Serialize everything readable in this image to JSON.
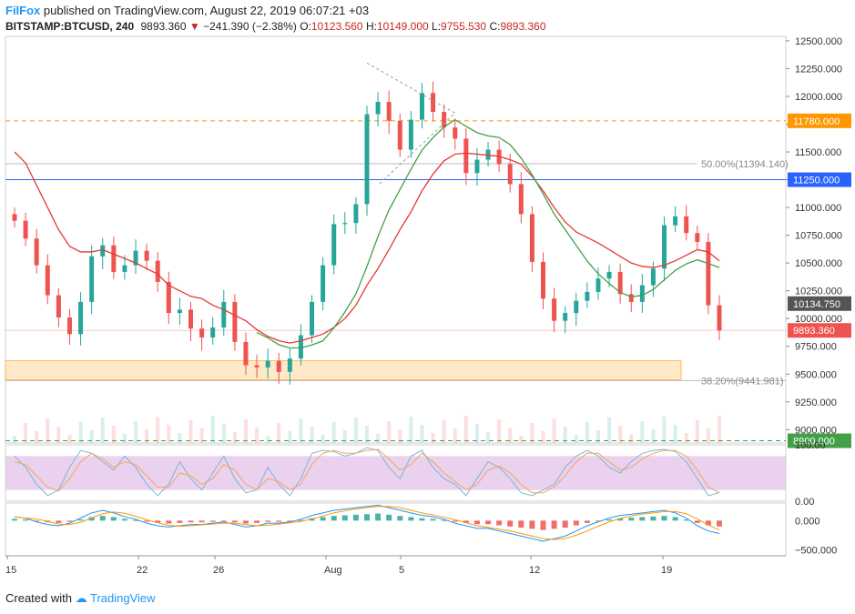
{
  "header": {
    "user": "FilFox",
    "published_text": "published on TradingView.com, August 22, 2019 06:07:21 +03",
    "symbol": "BITSTAMP:BTCUSD, 240",
    "last": "9893.360",
    "arrow": "▼",
    "change": "−241.390 (−2.38%)",
    "o_label": "O:",
    "o_value": "10123.560",
    "h_label": "H:",
    "h_value": "10149.000",
    "l_label": "L:",
    "l_value": "9755.530",
    "c_label": "C:",
    "c_value": "9893.360"
  },
  "footer": {
    "created": "Created with",
    "brand": "TradingView"
  },
  "colors": {
    "up": "#26a69a",
    "down": "#ef5350",
    "ma_red": "#e53935",
    "ma_green": "#43a047",
    "orange": "#ff9800",
    "blue": "#2962ff",
    "rsi_band": "#e1bee7",
    "zone": "#ffe0b2"
  },
  "chart_data": [
    {
      "type": "candlestick",
      "price_axis_labels": [
        "12500.000",
        "12250.000",
        "12000.000",
        "11750.000",
        "11500.000",
        "11250.000",
        "11000.000",
        "10750.000",
        "10500.000",
        "10250.000",
        "10000.000",
        "9750.000",
        "9500.000",
        "9250.000",
        "9000.000"
      ],
      "x_tick_labels": [
        "15",
        "22",
        "26",
        "Aug",
        "5",
        "12",
        "19"
      ],
      "ylim": [
        8880,
        12540
      ],
      "series": [
        {
          "name": "close_series",
          "values": [
            10880,
            10720,
            10480,
            10210,
            10010,
            9860,
            10150,
            10560,
            10660,
            10420,
            10480,
            10610,
            10520,
            10330,
            10050,
            10080,
            9910,
            9830,
            9920,
            10150,
            9790,
            9580,
            9560,
            9620,
            9520,
            9640,
            9850,
            10150,
            10480,
            10850,
            10860,
            11030,
            11840,
            11950,
            11780,
            11520,
            11790,
            12030,
            11860,
            11720,
            11620,
            11310,
            11430,
            11520,
            11390,
            11210,
            10940,
            10510,
            10180,
            9980,
            10050,
            10160,
            10240,
            10360,
            10420,
            10220,
            10150,
            10300,
            10450,
            10840,
            10920,
            10770,
            10690,
            10120,
            9893
          ]
        },
        {
          "name": "ma_red",
          "values": [
            11500,
            11400,
            11200,
            11000,
            10800,
            10650,
            10600,
            10600,
            10620,
            10580,
            10540,
            10500,
            10450,
            10400,
            10300,
            10250,
            10200,
            10180,
            10120,
            10080,
            10030,
            9980,
            9900,
            9840,
            9800,
            9780,
            9800,
            9830,
            9860,
            9920,
            10000,
            10120,
            10300,
            10450,
            10620,
            10800,
            10960,
            11150,
            11300,
            11420,
            11480,
            11490,
            11480,
            11470,
            11460,
            11430,
            11390,
            11280,
            11150,
            11000,
            10870,
            10780,
            10730,
            10680,
            10620,
            10560,
            10500,
            10470,
            10460,
            10480,
            10520,
            10570,
            10620,
            10600,
            10520
          ]
        }
      ],
      "horizontal_lines": [
        {
          "name": "resistance_11780",
          "price": 11780,
          "label": "11780.000"
        },
        {
          "name": "level_11250",
          "price": 11250,
          "label": "11250.000"
        },
        {
          "name": "support_8900",
          "price": 8900,
          "label": "8900.000"
        }
      ],
      "fib_levels": [
        {
          "label": "50.00%(11394.140)",
          "price": 11394.14
        },
        {
          "label": "38.20%(9441.981)",
          "price": 9441.981
        }
      ],
      "price_labels": [
        {
          "name": "prev_close_label",
          "price": 10134.75,
          "label": "10134.750"
        },
        {
          "name": "last_price_label",
          "price": 9893.36,
          "label": "9893.360"
        }
      ]
    },
    {
      "type": "line",
      "name": "rsi",
      "axis_labels": [
        "100.00",
        "0.00"
      ],
      "ylim": [
        0,
        100
      ],
      "band": [
        20,
        80
      ],
      "series": [
        {
          "name": "k",
          "values": [
            80,
            60,
            30,
            10,
            20,
            60,
            90,
            85,
            70,
            55,
            80,
            60,
            30,
            10,
            30,
            70,
            40,
            20,
            50,
            80,
            40,
            15,
            20,
            60,
            30,
            10,
            40,
            85,
            90,
            88,
            80,
            85,
            95,
            90,
            60,
            40,
            80,
            90,
            60,
            40,
            30,
            10,
            40,
            70,
            60,
            40,
            15,
            10,
            20,
            30,
            60,
            80,
            90,
            80,
            60,
            50,
            70,
            85,
            90,
            92,
            88,
            70,
            40,
            10,
            15
          ]
        },
        {
          "name": "d",
          "values": [
            70,
            65,
            45,
            25,
            18,
            40,
            70,
            85,
            75,
            60,
            70,
            65,
            45,
            25,
            25,
            50,
            45,
            30,
            40,
            65,
            55,
            30,
            20,
            40,
            35,
            20,
            30,
            65,
            85,
            90,
            85,
            85,
            90,
            92,
            75,
            55,
            65,
            85,
            70,
            50,
            35,
            20,
            30,
            55,
            62,
            50,
            30,
            15,
            15,
            25,
            45,
            70,
            85,
            85,
            70,
            55,
            60,
            75,
            85,
            90,
            90,
            80,
            55,
            25,
            15
          ]
        }
      ]
    },
    {
      "type": "bar",
      "name": "macd",
      "axis_labels": [
        "0.000",
        "−500.000"
      ],
      "ylim": [
        -600,
        300
      ],
      "histogram": [
        30,
        20,
        -10,
        -30,
        -40,
        -20,
        20,
        60,
        80,
        60,
        30,
        10,
        -20,
        -40,
        -50,
        -40,
        -30,
        -30,
        -20,
        -10,
        -30,
        -50,
        -40,
        -20,
        -20,
        -10,
        10,
        40,
        60,
        80,
        90,
        100,
        110,
        120,
        100,
        80,
        60,
        40,
        30,
        10,
        -20,
        -40,
        -60,
        -60,
        -80,
        -100,
        -120,
        -140,
        -160,
        -140,
        -120,
        -80,
        -40,
        -10,
        20,
        40,
        50,
        60,
        70,
        80,
        60,
        20,
        -40,
        -80,
        -100
      ]
    }
  ]
}
